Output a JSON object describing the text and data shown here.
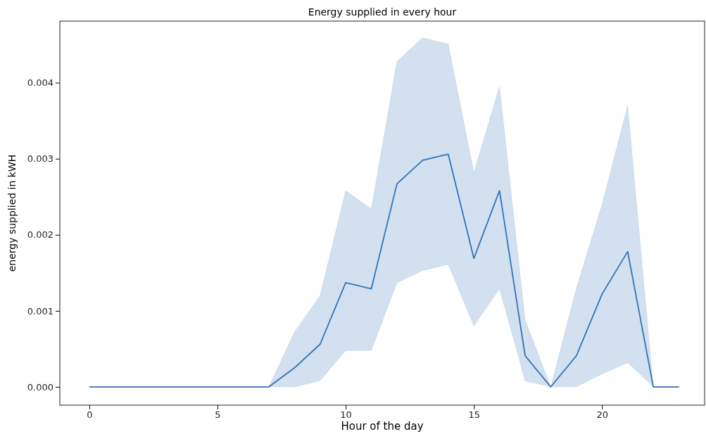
{
  "chart_data": {
    "type": "line",
    "title": "Energy supplied in every hour",
    "xlabel": "Hour of the day",
    "ylabel": "energy supplied in kWH",
    "x": [
      0,
      1,
      2,
      3,
      4,
      5,
      6,
      7,
      8,
      9,
      10,
      11,
      12,
      13,
      14,
      15,
      16,
      17,
      18,
      19,
      20,
      21,
      22,
      23
    ],
    "series": [
      {
        "color": "#3274b5",
        "values": [
          0,
          0,
          0,
          0,
          0,
          0,
          0,
          0,
          0.00025,
          0.00056,
          0.00137,
          0.00129,
          0.00267,
          0.00298,
          0.00306,
          0.00169,
          0.00258,
          0.00041,
          0,
          0.00041,
          0.00122,
          0.00178,
          0,
          0
        ],
        "lower": [
          0,
          0,
          0,
          0,
          0,
          0,
          0,
          0,
          0,
          8e-05,
          0.00048,
          0.00048,
          0.00137,
          0.00153,
          0.00161,
          0.0008,
          0.00129,
          8e-05,
          0,
          0,
          0.00017,
          0.00032,
          0,
          0
        ],
        "upper": [
          0,
          0,
          0,
          0,
          0,
          0,
          0,
          0,
          0.00072,
          0.0012,
          0.00258,
          0.00234,
          0.00428,
          0.00459,
          0.00451,
          0.00282,
          0.00395,
          0.00088,
          0,
          0.0013,
          0.0024,
          0.0037,
          0,
          0
        ]
      }
    ],
    "xlim": [
      -1.15,
      24
    ],
    "ylim": [
      -0.00024,
      0.00481
    ],
    "xticks": [
      0,
      5,
      10,
      15,
      20
    ],
    "yticks": [
      {
        "value": 0,
        "label": "0.000"
      },
      {
        "value": 0.001,
        "label": "0.001"
      },
      {
        "value": 0.002,
        "label": "0.002"
      },
      {
        "value": 0.003,
        "label": "0.003"
      },
      {
        "value": 0.004,
        "label": "0.004"
      }
    ],
    "grid": false,
    "marker": "none",
    "line_style": "solid"
  }
}
